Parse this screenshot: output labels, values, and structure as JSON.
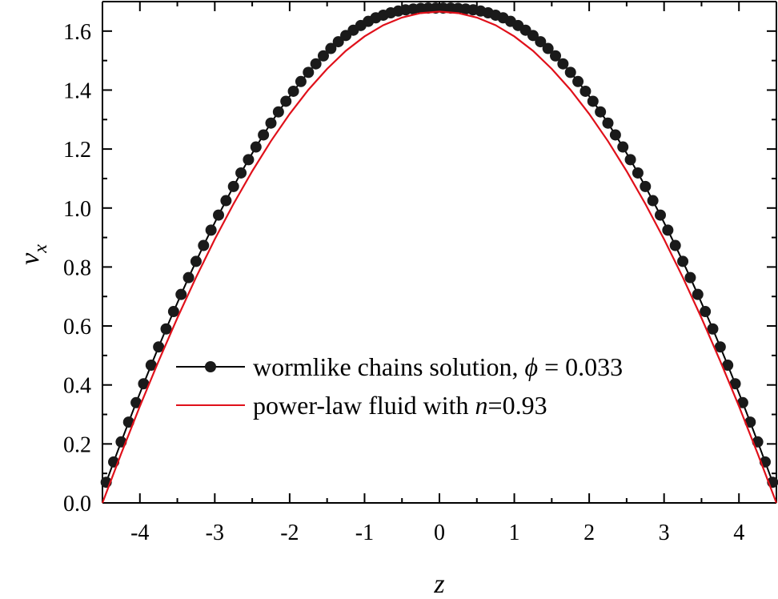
{
  "chart_data": {
    "type": "line",
    "xlabel": "z",
    "ylabel": "v",
    "ylabel_sub": "x",
    "xlim": [
      -4.5,
      4.5
    ],
    "ylim": [
      0.0,
      1.7
    ],
    "x_ticks": [
      -4,
      -3,
      -2,
      -1,
      0,
      1,
      2,
      3,
      4
    ],
    "x_tick_labels": [
      "-4",
      "-3",
      "-2",
      "-1",
      "0",
      "1",
      "2",
      "3",
      "4"
    ],
    "y_ticks": [
      0.0,
      0.2,
      0.4,
      0.6,
      0.8,
      1.0,
      1.2,
      1.4,
      1.6
    ],
    "y_tick_labels": [
      "0.0",
      "0.2",
      "0.4",
      "0.6",
      "0.8",
      "1.0",
      "1.2",
      "1.4",
      "1.6"
    ],
    "grid": false,
    "legend_position": "lower-center",
    "series": [
      {
        "name": "wormlike chains solution, ϕ = 0.033",
        "style": "line-markers",
        "color": "#000000",
        "x": [
          -4.45,
          -4.35,
          -4.25,
          -4.15,
          -4.05,
          -3.95,
          -3.85,
          -3.75,
          -3.65,
          -3.55,
          -3.45,
          -3.35,
          -3.25,
          -3.15,
          -3.05,
          -2.95,
          -2.85,
          -2.75,
          -2.65,
          -2.55,
          -2.45,
          -2.35,
          -2.25,
          -2.15,
          -2.05,
          -1.95,
          -1.85,
          -1.75,
          -1.65,
          -1.55,
          -1.45,
          -1.35,
          -1.25,
          -1.15,
          -1.05,
          -0.95,
          -0.85,
          -0.75,
          -0.65,
          -0.55,
          -0.45,
          -0.35,
          -0.25,
          -0.15,
          -0.05,
          0.05,
          0.15,
          0.25,
          0.35,
          0.45,
          0.55,
          0.65,
          0.75,
          0.85,
          0.95,
          1.05,
          1.15,
          1.25,
          1.35,
          1.45,
          1.55,
          1.65,
          1.75,
          1.85,
          1.95,
          2.05,
          2.15,
          2.25,
          2.35,
          2.45,
          2.55,
          2.65,
          2.75,
          2.85,
          2.95,
          3.05,
          3.15,
          3.25,
          3.35,
          3.45,
          3.55,
          3.65,
          3.75,
          3.85,
          3.95,
          4.05,
          4.15,
          4.25,
          4.35,
          4.45
        ],
        "y": [
          0.07,
          0.139,
          0.207,
          0.274,
          0.34,
          0.404,
          0.467,
          0.529,
          0.59,
          0.649,
          0.707,
          0.764,
          0.819,
          0.873,
          0.925,
          0.976,
          1.025,
          1.073,
          1.119,
          1.164,
          1.207,
          1.248,
          1.288,
          1.326,
          1.362,
          1.396,
          1.429,
          1.46,
          1.489,
          1.516,
          1.541,
          1.564,
          1.585,
          1.603,
          1.619,
          1.633,
          1.645,
          1.654,
          1.662,
          1.668,
          1.672,
          1.675,
          1.677,
          1.678,
          1.678,
          1.678,
          1.678,
          1.677,
          1.675,
          1.672,
          1.668,
          1.662,
          1.654,
          1.645,
          1.633,
          1.619,
          1.603,
          1.585,
          1.564,
          1.541,
          1.516,
          1.489,
          1.46,
          1.429,
          1.396,
          1.362,
          1.326,
          1.288,
          1.248,
          1.207,
          1.164,
          1.119,
          1.073,
          1.025,
          0.976,
          0.925,
          0.873,
          0.819,
          0.764,
          0.707,
          0.649,
          0.59,
          0.529,
          0.467,
          0.404,
          0.34,
          0.274,
          0.207,
          0.139,
          0.07
        ]
      },
      {
        "name": "power-law fluid with n=0.93",
        "style": "line",
        "color": "#e0101a",
        "x": [
          -4.5,
          -4.25,
          -4.0,
          -3.75,
          -3.5,
          -3.25,
          -3.0,
          -2.75,
          -2.5,
          -2.25,
          -2.0,
          -1.75,
          -1.5,
          -1.25,
          -1.0,
          -0.75,
          -0.5,
          -0.25,
          0.0,
          0.25,
          0.5,
          0.75,
          1.0,
          1.25,
          1.5,
          1.75,
          2.0,
          2.25,
          2.5,
          2.75,
          3.0,
          3.25,
          3.5,
          3.75,
          4.0,
          4.25,
          4.5
        ],
        "y": [
          0.0,
          0.167,
          0.328,
          0.481,
          0.627,
          0.765,
          0.894,
          1.014,
          1.125,
          1.227,
          1.319,
          1.401,
          1.472,
          1.533,
          1.582,
          1.62,
          1.646,
          1.661,
          1.666,
          1.661,
          1.646,
          1.62,
          1.582,
          1.533,
          1.472,
          1.401,
          1.319,
          1.227,
          1.125,
          1.014,
          0.894,
          0.765,
          0.627,
          0.481,
          0.328,
          0.167,
          0.0
        ]
      }
    ],
    "legend": [
      {
        "prefix": "wormlike chains solution, ",
        "symbol": "ϕ",
        "suffix": " = 0.033"
      },
      {
        "prefix": "power-law fluid with ",
        "symbol": "n",
        "suffix": "=0.93"
      }
    ]
  }
}
